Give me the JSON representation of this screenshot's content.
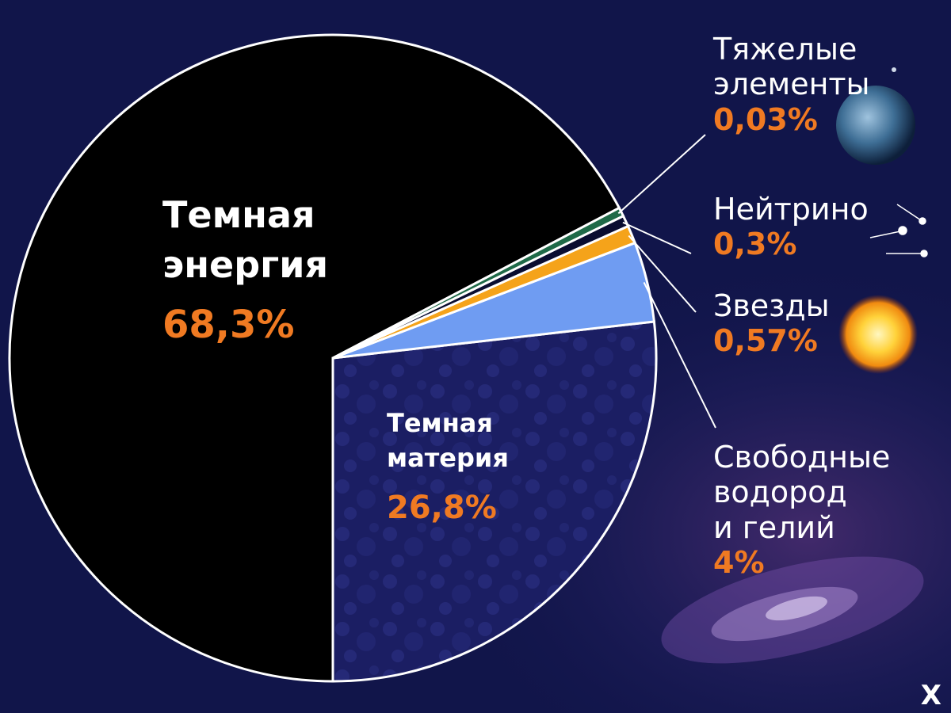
{
  "chart_data": {
    "type": "pie",
    "slices": [
      {
        "label": "Темная энергия",
        "value": 68.3,
        "value_label": "68,3%",
        "color": "#000000"
      },
      {
        "label": "Темная материя",
        "value": 26.8,
        "value_label": "26,8%",
        "color": "#1b1e63"
      },
      {
        "label": "Свободные водород и гелий",
        "value": 4,
        "value_label": "4%",
        "color": "#6f9cf2"
      },
      {
        "label": "Звезды",
        "value": 0.57,
        "value_label": "0,57%",
        "color": "#f5a31a"
      },
      {
        "label": "Нейтрино",
        "value": 0.3,
        "value_label": "0,3%",
        "color": "#0a0d30"
      },
      {
        "label": "Тяжелые элементы",
        "value": 0.03,
        "value_label": "0,03%",
        "color": "#1f6a48"
      }
    ]
  },
  "labels": {
    "energy": {
      "line1": "Темная",
      "line2": "энергия",
      "pct": "68,3%"
    },
    "matter": {
      "line1": "Темная",
      "line2": "материя",
      "pct": "26,8%"
    },
    "heavy": {
      "line1": "Тяжелые",
      "line2": "элементы",
      "pct": "0,03%"
    },
    "neutrino": {
      "line1": "Нейтрино",
      "pct": "0,3%"
    },
    "stars": {
      "line1": "Звезды",
      "pct": "0,57%"
    },
    "gas": {
      "line1": "Свободные",
      "line2": "водород",
      "line3": "и гелий",
      "pct": "4%"
    }
  },
  "corner_mark": "X",
  "colors": {
    "background": "#11154a",
    "outline": "#ffffff",
    "percent_text": "#f07a22"
  }
}
